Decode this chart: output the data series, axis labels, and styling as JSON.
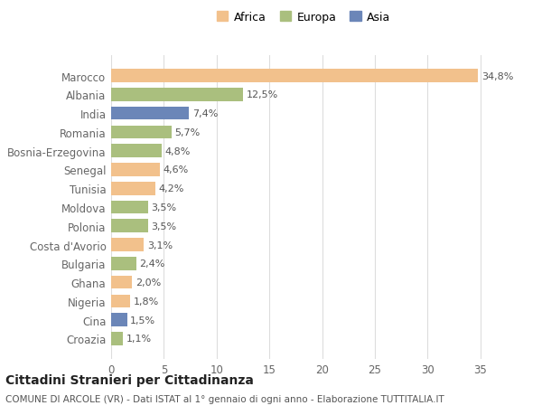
{
  "categories": [
    "Marocco",
    "Albania",
    "India",
    "Romania",
    "Bosnia-Erzegovina",
    "Senegal",
    "Tunisia",
    "Moldova",
    "Polonia",
    "Costa d'Avorio",
    "Bulgaria",
    "Ghana",
    "Nigeria",
    "Cina",
    "Croazia"
  ],
  "values": [
    34.8,
    12.5,
    7.4,
    5.7,
    4.8,
    4.6,
    4.2,
    3.5,
    3.5,
    3.1,
    2.4,
    2.0,
    1.8,
    1.5,
    1.1
  ],
  "colors": [
    "#F2C18C",
    "#AABF7E",
    "#6B86B8",
    "#AABF7E",
    "#AABF7E",
    "#F2C18C",
    "#F2C18C",
    "#AABF7E",
    "#AABF7E",
    "#F2C18C",
    "#AABF7E",
    "#F2C18C",
    "#F2C18C",
    "#6B86B8",
    "#AABF7E"
  ],
  "legend_labels": [
    "Africa",
    "Europa",
    "Asia"
  ],
  "legend_colors": [
    "#F2C18C",
    "#AABF7E",
    "#6B86B8"
  ],
  "xlim": [
    0,
    37
  ],
  "xticks": [
    0,
    5,
    10,
    15,
    20,
    25,
    30,
    35
  ],
  "title": "Cittadini Stranieri per Cittadinanza",
  "subtitle": "COMUNE DI ARCOLE (VR) - Dati ISTAT al 1° gennaio di ogni anno - Elaborazione TUTTITALIA.IT",
  "bg_color": "#FFFFFF",
  "grid_color": "#DDDDDD",
  "bar_label_fontsize": 8,
  "title_fontsize": 10,
  "subtitle_fontsize": 7.5
}
